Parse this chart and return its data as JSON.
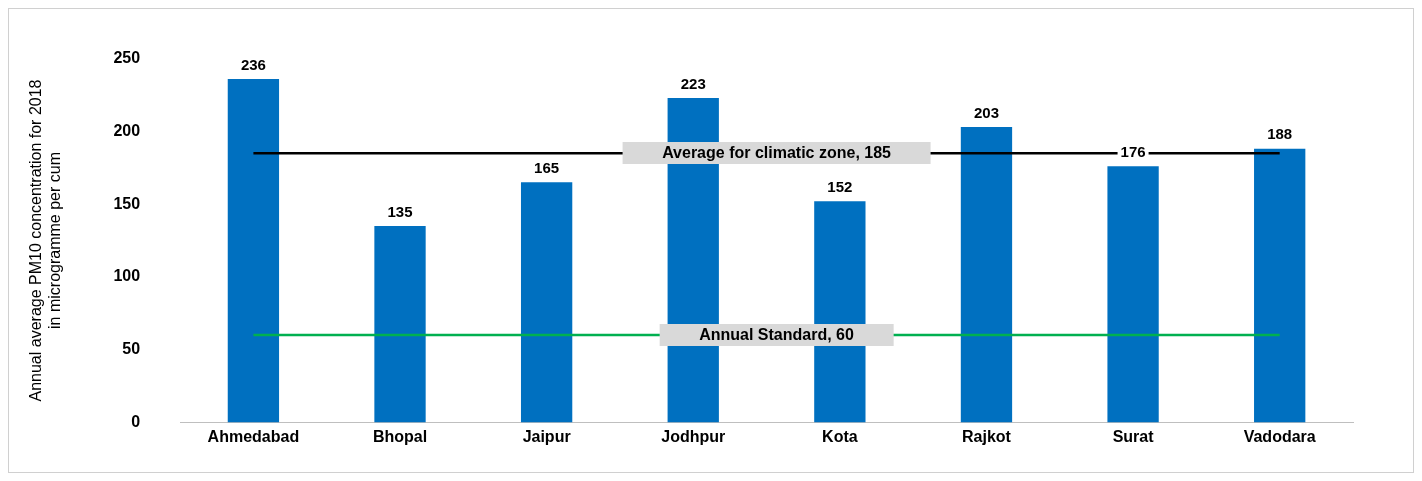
{
  "chart_data": {
    "type": "bar",
    "ylabel": "Annual average PM10 concentration for 2018\nin microgramme per cum",
    "categories": [
      "Ahmedabad",
      "Bhopal",
      "Jaipur",
      "Jodhpur",
      "Kota",
      "Rajkot",
      "Surat",
      "Vadodara"
    ],
    "values": [
      236,
      135,
      165,
      223,
      152,
      203,
      176,
      188
    ],
    "color": "#0070c0",
    "ylim": [
      0,
      250
    ],
    "yticks": [
      0,
      50,
      100,
      150,
      200,
      250
    ],
    "grid": false,
    "legend": false,
    "data_labels": true,
    "ref_lines": [
      {
        "axis": "y",
        "value": 185,
        "label": "Average for climatic zone, 185",
        "color": "#000000",
        "line_style": "solid"
      },
      {
        "axis": "y",
        "value": 60,
        "label": "Annual Standard, 60",
        "color": "#00b050",
        "line_style": "solid"
      }
    ]
  }
}
